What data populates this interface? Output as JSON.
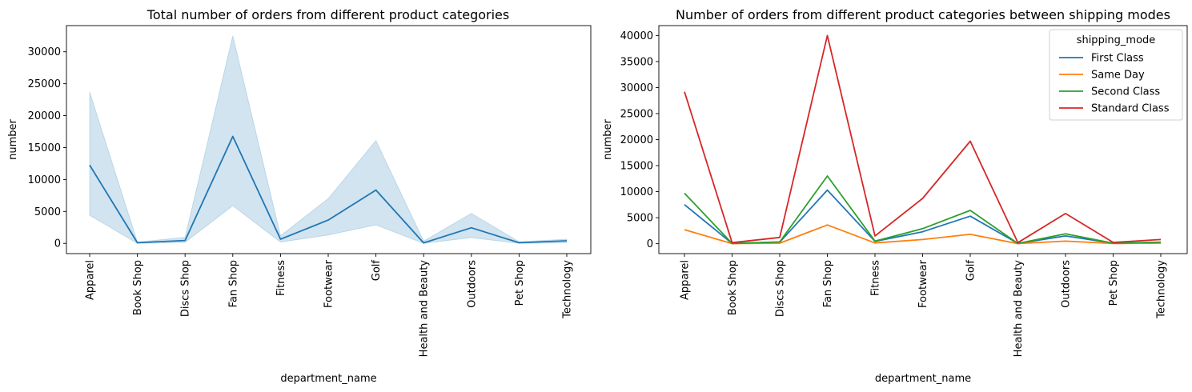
{
  "chart_data": [
    {
      "type": "line",
      "title": "Total number of orders from different product categories",
      "xlabel": "department_name",
      "ylabel": "number",
      "categories": [
        "Apparel",
        "Book Shop",
        "Discs Shop",
        "Fan Shop",
        "Fitness",
        "Footwear",
        "Golf",
        "Health and Beauty",
        "Outdoors",
        "Pet Shop",
        "Technology"
      ],
      "ylim": [
        -1600,
        34100
      ],
      "yticks": [
        0,
        5000,
        10000,
        15000,
        20000,
        25000,
        30000
      ],
      "series": [
        {
          "values": [
            12250,
            100,
            450,
            16750,
            650,
            3650,
            8350,
            80,
            2450,
            100,
            400
          ],
          "ci_lower": [
            4400,
            0,
            150,
            5900,
            200,
            1300,
            2900,
            0,
            900,
            0,
            100
          ],
          "ci_upper": [
            23700,
            200,
            950,
            32500,
            1200,
            7000,
            16100,
            350,
            4700,
            250,
            650
          ],
          "color": "#1f77b4"
        }
      ],
      "grid": false
    },
    {
      "type": "line",
      "title": "Number of orders from different product categories between shipping modes",
      "xlabel": "department_name",
      "ylabel": "number",
      "categories": [
        "Apparel",
        "Book Shop",
        "Discs Shop",
        "Fan Shop",
        "Fitness",
        "Footwear",
        "Golf",
        "Health and Beauty",
        "Outdoors",
        "Pet Shop",
        "Technology"
      ],
      "ylim": [
        -1900,
        41900
      ],
      "yticks": [
        0,
        5000,
        10000,
        15000,
        20000,
        25000,
        30000,
        35000,
        40000
      ],
      "legend_title": "shipping_mode",
      "legend_position": "top-right",
      "series": [
        {
          "name": "First Class",
          "color": "#1f77b4",
          "values": [
            7500,
            50,
            300,
            10300,
            450,
            2300,
            5300,
            50,
            1500,
            100,
            250
          ]
        },
        {
          "name": "Same Day",
          "color": "#ff7f0e",
          "values": [
            2700,
            20,
            100,
            3600,
            150,
            800,
            1800,
            20,
            500,
            30,
            100
          ]
        },
        {
          "name": "Second Class",
          "color": "#2ca02c",
          "values": [
            9700,
            50,
            350,
            13000,
            500,
            2900,
            6400,
            50,
            1900,
            100,
            300
          ]
        },
        {
          "name": "Standard Class",
          "color": "#d62728",
          "values": [
            29200,
            200,
            1200,
            40000,
            1500,
            8700,
            19700,
            200,
            5800,
            250,
            800
          ]
        }
      ],
      "grid": false
    }
  ]
}
